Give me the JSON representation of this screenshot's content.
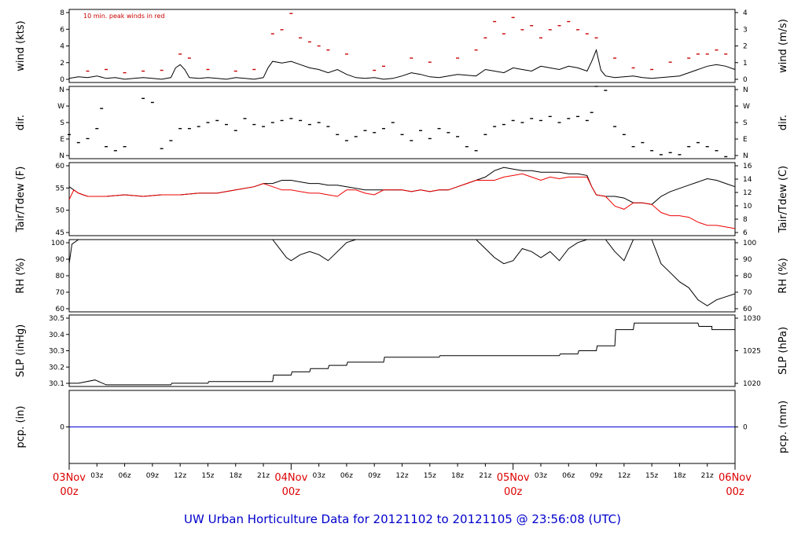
{
  "title": "UW Urban Horticulture Data for 20121102  to  20121105 @ 23:56:08  (UTC)",
  "colors": {
    "trace": "#000000",
    "peak": "#cc0000",
    "dew": "#ee0000",
    "precip": "#0000cc",
    "axis_label_red": "#dd0000",
    "title": "#0000cc"
  },
  "x_axis": {
    "range_hours": [
      0,
      72
    ],
    "major": [
      {
        "hour": 0,
        "day": "03Nov",
        "hh": "00z"
      },
      {
        "hour": 24,
        "day": "04Nov",
        "hh": "00z"
      },
      {
        "hour": 48,
        "day": "05Nov",
        "hh": "00z"
      },
      {
        "hour": 72,
        "day": "06Nov",
        "hh": "00z"
      }
    ],
    "minor": [
      {
        "hour": 3,
        "label": "03z"
      },
      {
        "hour": 6,
        "label": "06z"
      },
      {
        "hour": 9,
        "label": "09z"
      },
      {
        "hour": 12,
        "label": "12z"
      },
      {
        "hour": 15,
        "label": "15z"
      },
      {
        "hour": 18,
        "label": "18z"
      },
      {
        "hour": 21,
        "label": "21z"
      },
      {
        "hour": 27,
        "label": "03z"
      },
      {
        "hour": 30,
        "label": "06z"
      },
      {
        "hour": 33,
        "label": "09z"
      },
      {
        "hour": 36,
        "label": "12z"
      },
      {
        "hour": 39,
        "label": "15z"
      },
      {
        "hour": 42,
        "label": "18z"
      },
      {
        "hour": 45,
        "label": "21z"
      },
      {
        "hour": 51,
        "label": "03z"
      },
      {
        "hour": 54,
        "label": "06z"
      },
      {
        "hour": 57,
        "label": "09z"
      },
      {
        "hour": 60,
        "label": "12z"
      },
      {
        "hour": 63,
        "label": "15z"
      },
      {
        "hour": 66,
        "label": "18z"
      },
      {
        "hour": 69,
        "label": "21z"
      }
    ]
  },
  "chart_data": [
    {
      "id": "wind",
      "type": "line",
      "ylabel": "wind (kts)",
      "ylabel_right": "wind (m/s)",
      "annotation": "10 min. peak winds in red",
      "ylim": [
        0,
        9
      ],
      "yticks": [
        "0",
        "2",
        "4",
        "6",
        "8"
      ],
      "yticks_right": [
        "0",
        "1",
        "2",
        "3",
        "4"
      ],
      "series": [
        {
          "name": "wind",
          "x": [
            0,
            1,
            2,
            3,
            4,
            5,
            6,
            7,
            8,
            9,
            10,
            11,
            11.5,
            12,
            12.5,
            13,
            14,
            15,
            16,
            17,
            18,
            19,
            20,
            21,
            21.5,
            22,
            23,
            24,
            25,
            26,
            27,
            28,
            29,
            30,
            31,
            32,
            33,
            34,
            35,
            36,
            37,
            38,
            39,
            40,
            41,
            42,
            43,
            44,
            45,
            46,
            47,
            48,
            49,
            50,
            51,
            52,
            53,
            54,
            55,
            56,
            56.5,
            57,
            57.5,
            58,
            59,
            60,
            61,
            62,
            63,
            64,
            65,
            66,
            67,
            68,
            69,
            70,
            71,
            72
          ],
          "y": [
            0.5,
            0.7,
            0.6,
            0.8,
            0.5,
            0.6,
            0.4,
            0.5,
            0.6,
            0.5,
            0.4,
            0.6,
            1.8,
            2.2,
            1.6,
            0.6,
            0.5,
            0.6,
            0.5,
            0.4,
            0.6,
            0.5,
            0.4,
            0.6,
            1.8,
            2.6,
            2.4,
            2.6,
            2.2,
            1.8,
            1.6,
            1.2,
            1.6,
            1.0,
            0.6,
            0.5,
            0.6,
            0.4,
            0.5,
            0.8,
            1.2,
            1.0,
            0.7,
            0.6,
            0.8,
            1.0,
            0.9,
            0.8,
            1.6,
            1.4,
            1.2,
            1.8,
            1.6,
            1.4,
            2.0,
            1.8,
            1.6,
            2.0,
            1.8,
            1.4,
            2.6,
            4.0,
            1.5,
            0.8,
            0.6,
            0.7,
            0.8,
            0.6,
            0.5,
            0.6,
            0.7,
            0.8,
            1.2,
            1.6,
            2.0,
            2.2,
            2.0,
            1.6
          ]
        },
        {
          "name": "peak",
          "x": [
            2,
            4,
            6,
            8,
            10,
            12,
            13,
            15,
            18,
            20,
            22,
            23,
            24,
            25,
            26,
            27,
            28,
            30,
            33,
            34,
            37,
            39,
            42,
            44,
            45,
            46,
            47,
            48,
            49,
            50,
            51,
            52,
            53,
            54,
            55,
            56,
            57,
            59,
            61,
            63,
            65,
            67,
            68,
            69,
            70,
            71
          ],
          "y": [
            1.4,
            1.6,
            1.2,
            1.4,
            1.5,
            3.5,
            3.0,
            1.6,
            1.4,
            1.6,
            6.0,
            6.5,
            8.5,
            5.5,
            5.0,
            4.5,
            4.0,
            3.5,
            1.5,
            2.0,
            3.0,
            2.5,
            3.0,
            4.0,
            5.5,
            7.5,
            6.0,
            8.0,
            6.5,
            7.0,
            5.5,
            6.5,
            7.0,
            7.5,
            6.5,
            6.0,
            5.5,
            3.0,
            1.8,
            1.6,
            2.5,
            3.0,
            3.5,
            3.5,
            4.0,
            3.5
          ]
        }
      ]
    },
    {
      "id": "dir",
      "type": "scatter",
      "ylabel": "dir.",
      "ylabel_right": "dir.",
      "ylim": [
        0,
        360
      ],
      "yticks": [
        "N",
        "E",
        "S",
        "W",
        "N"
      ],
      "yticks_right": [
        "N",
        "E",
        "S",
        "W",
        "N"
      ],
      "series": [
        {
          "name": "direction",
          "x": [
            0,
            1,
            2,
            3,
            3.5,
            4,
            5,
            6,
            8,
            9,
            10,
            11,
            12,
            13,
            14,
            15,
            16,
            17,
            18,
            19,
            20,
            21,
            22,
            23,
            24,
            25,
            26,
            27,
            28,
            29,
            30,
            31,
            32,
            33,
            34,
            35,
            36,
            37,
            38,
            39,
            40,
            41,
            42,
            43,
            44,
            45,
            46,
            47,
            48,
            49,
            50,
            51,
            52,
            53,
            54,
            55,
            56,
            56.5,
            57,
            58,
            59,
            60,
            61,
            62,
            63,
            64,
            65,
            66,
            67,
            68,
            69,
            70,
            71
          ],
          "y": [
            120,
            80,
            100,
            150,
            250,
            60,
            40,
            60,
            300,
            280,
            50,
            90,
            150,
            150,
            160,
            180,
            190,
            170,
            140,
            200,
            170,
            160,
            180,
            190,
            200,
            190,
            170,
            180,
            160,
            120,
            90,
            110,
            140,
            130,
            150,
            180,
            120,
            90,
            140,
            100,
            150,
            130,
            110,
            60,
            40,
            120,
            160,
            170,
            190,
            180,
            200,
            190,
            210,
            180,
            200,
            210,
            190,
            230,
            360,
            340,
            160,
            120,
            60,
            80,
            40,
            20,
            30,
            20,
            60,
            80,
            60,
            40,
            10
          ]
        }
      ]
    },
    {
      "id": "temp",
      "type": "line",
      "ylabel": "Tair/Tdew (F)",
      "ylabel_right": "Tair/Tdew (C)",
      "ylim": [
        40.8,
        63.5
      ],
      "yticks": [
        "45",
        "50",
        "55",
        "60"
      ],
      "yticks_right": [
        "6",
        "8",
        "10",
        "12",
        "14",
        "16"
      ],
      "series": [
        {
          "name": "Tair",
          "x": [
            0,
            1,
            2,
            4,
            6,
            8,
            10,
            12,
            14,
            16,
            18,
            20,
            21,
            22,
            23,
            24,
            25,
            26,
            27,
            28,
            29,
            30,
            31,
            32,
            33,
            34,
            35,
            36,
            37,
            38,
            39,
            40,
            41,
            42,
            43,
            44,
            45,
            46,
            47,
            48,
            49,
            50,
            51,
            52,
            53,
            54,
            55,
            56,
            56.5,
            57,
            58,
            59,
            60,
            61,
            62,
            63,
            64,
            65,
            66,
            67,
            68,
            69,
            70,
            71,
            72
          ],
          "y": [
            56,
            54,
            53,
            53,
            53.5,
            53,
            53.5,
            53.5,
            54,
            54,
            55,
            56,
            57,
            57,
            58,
            58,
            57.5,
            57,
            57,
            56.5,
            56.5,
            56,
            55.5,
            55,
            55,
            55,
            55,
            55,
            54.5,
            55,
            54.5,
            55,
            55,
            56,
            57,
            58,
            59,
            61,
            62,
            61.5,
            61,
            61,
            60.5,
            60.5,
            60.5,
            60,
            60,
            59.5,
            56,
            53.5,
            53,
            53,
            52.5,
            51,
            51,
            50.5,
            53,
            54.5,
            55.5,
            56.5,
            57.5,
            58.5,
            58,
            57,
            56
          ]
        },
        {
          "name": "Tdew",
          "x": [
            0,
            0.5,
            1,
            2,
            4,
            6,
            8,
            10,
            12,
            14,
            16,
            18,
            20,
            21,
            22,
            23,
            24,
            25,
            26,
            27,
            28,
            29,
            30,
            31,
            32,
            33,
            34,
            35,
            36,
            37,
            38,
            39,
            40,
            41,
            42,
            43,
            44,
            45,
            46,
            47,
            48,
            49,
            50,
            51,
            52,
            53,
            54,
            55,
            56,
            56.5,
            57,
            58,
            59,
            60,
            61,
            62,
            63,
            64,
            65,
            66,
            67,
            68,
            69,
            70,
            71,
            72
          ],
          "y": [
            52,
            55,
            54,
            53,
            53,
            53.5,
            53,
            53.5,
            53.5,
            54,
            54,
            55,
            56,
            57,
            56,
            55,
            55,
            54.5,
            54,
            54,
            53.5,
            53,
            55,
            55,
            54,
            53.5,
            55,
            55,
            55,
            54.5,
            55,
            54.5,
            55,
            55,
            56,
            57,
            58,
            58,
            58,
            59,
            59.5,
            60,
            59,
            58,
            59,
            58.5,
            59,
            59,
            59,
            56,
            53.5,
            53,
            50,
            49,
            51,
            51,
            50.5,
            48,
            47,
            47,
            46.5,
            45,
            44,
            44,
            43.5,
            43
          ]
        }
      ]
    },
    {
      "id": "rh",
      "type": "line",
      "ylabel": "RH (%)",
      "ylabel_right": "RH (%)",
      "ylim": [
        52,
        100
      ],
      "yticks": [
        "60",
        "70",
        "80",
        "90",
        "100"
      ],
      "yticks_right": [
        "60",
        "70",
        "80",
        "90",
        "100"
      ],
      "series": [
        {
          "name": "RH",
          "x": [
            0,
            0.3,
            1,
            2,
            4,
            6,
            8,
            10,
            12,
            14,
            16,
            18,
            20,
            21,
            22,
            23,
            23.5,
            24,
            25,
            26,
            27,
            28,
            29,
            30,
            31,
            32,
            33,
            34,
            35,
            36,
            37,
            38,
            39,
            40,
            41,
            42,
            43,
            44,
            45,
            46,
            47,
            48,
            49,
            50,
            51,
            52,
            53,
            54,
            55,
            56,
            56.5,
            57,
            58,
            59,
            60,
            61,
            62,
            63,
            64,
            65,
            66,
            67,
            68,
            69,
            70,
            71,
            72
          ],
          "y": [
            84,
            97,
            100,
            100,
            100,
            100,
            100,
            100,
            100,
            100,
            100,
            100,
            100,
            100,
            100,
            92,
            88,
            86,
            90,
            92,
            90,
            86,
            92,
            98,
            100,
            100,
            100,
            100,
            100,
            100,
            100,
            100,
            100,
            100,
            100,
            100,
            100,
            100,
            94,
            88,
            84,
            86,
            94,
            92,
            88,
            92,
            86,
            94,
            98,
            100,
            100,
            100,
            100,
            92,
            86,
            100,
            100,
            100,
            84,
            78,
            72,
            68,
            60,
            56,
            60,
            62,
            64
          ]
        }
      ]
    },
    {
      "id": "slp",
      "type": "line",
      "ylabel": "SLP (inHg)",
      "ylabel_right": "SLP (hPa)",
      "ylim": [
        30.08,
        30.52
      ],
      "yticks": [
        "30.1",
        "30.2",
        "30.3",
        "30.4",
        "30.5"
      ],
      "yticks_right": [
        "1020",
        "1025",
        "1030"
      ],
      "series": [
        {
          "name": "SLP",
          "x": [
            0,
            1,
            2.8,
            4,
            7,
            11,
            11.1,
            15,
            15.1,
            22,
            22.1,
            24,
            24.1,
            26,
            26.1,
            28,
            28.1,
            30,
            30.1,
            34,
            34.1,
            40,
            40.1,
            48,
            48.1,
            49,
            49.1,
            53,
            53.1,
            55,
            55.1,
            57,
            57.1,
            59,
            59.1,
            61,
            61.1,
            68,
            68.1,
            69.5,
            69.5,
            70,
            70.1,
            72
          ],
          "y": [
            30.1,
            30.1,
            30.12,
            30.09,
            30.09,
            30.09,
            30.1,
            30.1,
            30.11,
            30.11,
            30.15,
            30.15,
            30.17,
            30.17,
            30.19,
            30.19,
            30.21,
            30.21,
            30.23,
            30.23,
            30.26,
            30.26,
            30.27,
            30.27,
            30.27,
            30.27,
            30.27,
            30.27,
            30.28,
            30.28,
            30.3,
            30.3,
            30.33,
            30.33,
            30.43,
            30.43,
            30.47,
            30.47,
            30.45,
            30.45,
            30.43,
            30.43,
            30.43,
            30.43
          ]
        }
      ]
    },
    {
      "id": "pcp",
      "type": "line",
      "ylabel": "pcp. (in)",
      "ylabel_right": "pcp. (mm)",
      "ylim": [
        -1,
        1
      ],
      "yticks": [
        "0"
      ],
      "yticks_right": [
        "0"
      ],
      "series": [
        {
          "name": "precip",
          "x": [
            0,
            72
          ],
          "y": [
            0,
            0
          ]
        }
      ]
    }
  ]
}
